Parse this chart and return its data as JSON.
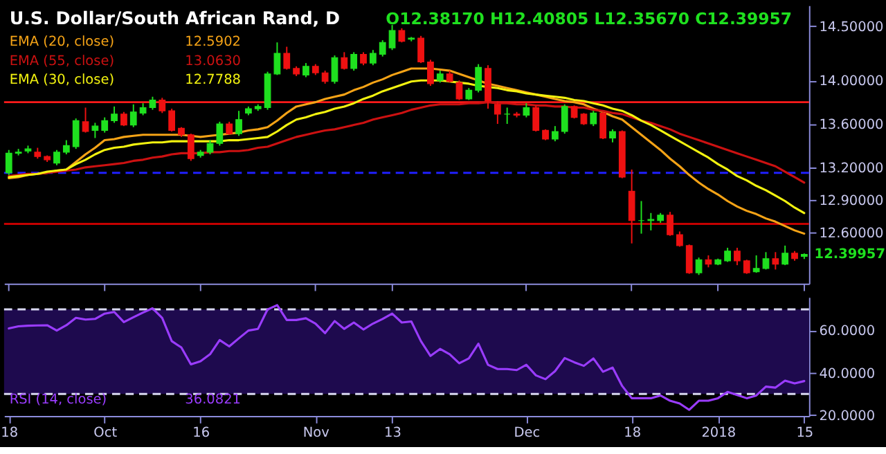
{
  "chart_data": [
    {
      "type": "candlestick",
      "title": "U.S. Dollar/South African Rand, D",
      "subtitle": "O12.38170 H12.40805 L12.35670 C12.39957",
      "categories": [
        "18",
        null,
        null,
        null,
        null,
        null,
        null,
        null,
        null,
        null,
        "Oct",
        null,
        null,
        null,
        null,
        null,
        null,
        null,
        null,
        null,
        "16",
        null,
        null,
        null,
        null,
        null,
        null,
        null,
        null,
        null,
        null,
        null,
        "Nov",
        null,
        null,
        null,
        null,
        null,
        null,
        null,
        "13",
        null,
        null,
        null,
        null,
        null,
        null,
        null,
        null,
        null,
        null,
        null,
        null,
        null,
        "Dec",
        null,
        null,
        null,
        null,
        null,
        null,
        null,
        null,
        null,
        null,
        "18",
        null,
        null,
        null,
        null,
        null,
        null,
        null,
        null,
        "2018",
        null,
        null,
        null,
        null,
        null,
        null,
        null,
        null,
        "15"
      ],
      "ohlc": [
        [
          13.15,
          13.36,
          13.13,
          13.33
        ],
        [
          13.33,
          13.37,
          13.31,
          13.34
        ],
        [
          13.35,
          13.4,
          13.33,
          13.37
        ],
        [
          13.34,
          13.38,
          13.28,
          13.3
        ],
        [
          13.3,
          13.31,
          13.25,
          13.27
        ],
        [
          13.24,
          13.36,
          13.22,
          13.34
        ],
        [
          13.34,
          13.45,
          13.32,
          13.4
        ],
        [
          13.39,
          13.65,
          13.37,
          13.63
        ],
        [
          13.62,
          13.75,
          13.52,
          13.53
        ],
        [
          13.54,
          13.61,
          13.47,
          13.58
        ],
        [
          13.54,
          13.66,
          13.52,
          13.63
        ],
        [
          13.63,
          13.76,
          13.61,
          13.69
        ],
        [
          13.69,
          13.71,
          13.58,
          13.59
        ],
        [
          13.59,
          13.78,
          13.57,
          13.71
        ],
        [
          13.7,
          13.79,
          13.68,
          13.75
        ],
        [
          13.75,
          13.85,
          13.73,
          13.82
        ],
        [
          13.82,
          13.84,
          13.7,
          13.72
        ],
        [
          13.72,
          13.74,
          13.53,
          13.54
        ],
        [
          13.56,
          13.57,
          13.48,
          13.5
        ],
        [
          13.5,
          13.51,
          13.26,
          13.28
        ],
        [
          13.31,
          13.36,
          13.29,
          13.34
        ],
        [
          13.34,
          13.45,
          13.32,
          13.42
        ],
        [
          13.42,
          13.62,
          13.4,
          13.6
        ],
        [
          13.6,
          13.62,
          13.5,
          13.51
        ],
        [
          13.51,
          13.72,
          13.49,
          13.64
        ],
        [
          13.7,
          13.76,
          13.68,
          13.74
        ],
        [
          13.74,
          13.78,
          13.72,
          13.76
        ],
        [
          13.75,
          14.08,
          13.73,
          14.06
        ],
        [
          14.06,
          14.35,
          14.05,
          14.25
        ],
        [
          14.25,
          14.31,
          14.1,
          14.11
        ],
        [
          14.11,
          14.13,
          14.04,
          14.06
        ],
        [
          14.05,
          14.16,
          14.03,
          14.13
        ],
        [
          14.13,
          14.15,
          14.05,
          14.07
        ],
        [
          14.07,
          14.09,
          13.97,
          13.99
        ],
        [
          13.99,
          14.23,
          13.97,
          14.21
        ],
        [
          14.21,
          14.26,
          14.1,
          14.11
        ],
        [
          14.11,
          14.26,
          14.09,
          14.24
        ],
        [
          14.24,
          14.26,
          14.14,
          14.16
        ],
        [
          14.16,
          14.28,
          14.14,
          14.25
        ],
        [
          14.24,
          14.37,
          14.22,
          14.35
        ],
        [
          14.3,
          14.51,
          14.28,
          14.46
        ],
        [
          14.46,
          14.48,
          14.35,
          14.36
        ],
        [
          14.38,
          14.4,
          14.36,
          14.39
        ],
        [
          14.39,
          14.41,
          14.16,
          14.17
        ],
        [
          14.17,
          14.19,
          13.95,
          13.97
        ],
        [
          14.0,
          14.09,
          13.98,
          14.06
        ],
        [
          14.06,
          14.09,
          13.98,
          13.99
        ],
        [
          13.98,
          14.0,
          13.82,
          13.83
        ],
        [
          13.83,
          13.93,
          13.82,
          13.91
        ],
        [
          13.91,
          14.15,
          13.89,
          14.12
        ],
        [
          14.11,
          14.14,
          13.74,
          13.81
        ],
        [
          13.78,
          13.81,
          13.6,
          13.69
        ],
        [
          13.69,
          13.75,
          13.6,
          13.69
        ],
        [
          13.69,
          13.71,
          13.66,
          13.68
        ],
        [
          13.68,
          13.79,
          13.66,
          13.75
        ],
        [
          13.75,
          13.77,
          13.53,
          13.54
        ],
        [
          13.54,
          13.55,
          13.45,
          13.46
        ],
        [
          13.46,
          13.58,
          13.44,
          13.53
        ],
        [
          13.53,
          13.78,
          13.51,
          13.76
        ],
        [
          13.76,
          13.77,
          13.65,
          13.66
        ],
        [
          13.69,
          13.7,
          13.59,
          13.6
        ],
        [
          13.6,
          13.72,
          13.58,
          13.7
        ],
        [
          13.7,
          13.71,
          13.46,
          13.47
        ],
        [
          13.47,
          13.55,
          13.43,
          13.53
        ],
        [
          13.53,
          13.54,
          13.1,
          13.11
        ],
        [
          12.98,
          13.18,
          12.5,
          12.71
        ],
        [
          12.71,
          12.89,
          12.59,
          12.71
        ],
        [
          12.71,
          12.78,
          12.62,
          12.72
        ],
        [
          12.71,
          12.78,
          12.69,
          12.76
        ],
        [
          12.76,
          12.79,
          12.57,
          12.58
        ],
        [
          12.58,
          12.61,
          12.47,
          12.48
        ],
        [
          12.48,
          12.49,
          12.22,
          12.23
        ],
        [
          12.23,
          12.37,
          12.21,
          12.35
        ],
        [
          12.35,
          12.39,
          12.28,
          12.31
        ],
        [
          12.31,
          12.36,
          12.3,
          12.35
        ],
        [
          12.34,
          12.46,
          12.33,
          12.43
        ],
        [
          12.43,
          12.46,
          12.3,
          12.34
        ],
        [
          12.34,
          12.35,
          12.22,
          12.23
        ],
        [
          12.24,
          12.39,
          12.23,
          12.27
        ],
        [
          12.27,
          12.42,
          12.26,
          12.36
        ],
        [
          12.36,
          12.42,
          12.26,
          12.31
        ],
        [
          12.31,
          12.48,
          12.3,
          12.41
        ],
        [
          12.41,
          12.43,
          12.34,
          12.36
        ],
        [
          12.3817,
          12.40805,
          12.3567,
          12.39957
        ]
      ],
      "colors": [
        "#1fe01f",
        "#1fe01f",
        "#1fe01f",
        "#ee1111",
        "#ee1111",
        "#1fe01f",
        "#1fe01f",
        "#1fe01f",
        "#ee1111",
        "#1fe01f",
        "#1fe01f",
        "#1fe01f",
        "#ee1111",
        "#1fe01f",
        "#1fe01f",
        "#1fe01f",
        "#ee1111",
        "#ee1111",
        "#ee1111",
        "#ee1111",
        "#1fe01f",
        "#1fe01f",
        "#1fe01f",
        "#ee1111",
        "#1fe01f",
        "#1fe01f",
        "#1fe01f",
        "#1fe01f",
        "#1fe01f",
        "#ee1111",
        "#ee1111",
        "#1fe01f",
        "#ee1111",
        "#ee1111",
        "#1fe01f",
        "#ee1111",
        "#1fe01f",
        "#ee1111",
        "#1fe01f",
        "#1fe01f",
        "#1fe01f",
        "#ee1111",
        "#1fe01f",
        "#ee1111",
        "#ee1111",
        "#1fe01f",
        "#ee1111",
        "#ee1111",
        "#1fe01f",
        "#1fe01f",
        "#ee1111",
        "#ee1111",
        "#1fe01f",
        "#ee1111",
        "#1fe01f",
        "#ee1111",
        "#ee1111",
        "#1fe01f",
        "#1fe01f",
        "#ee1111",
        "#ee1111",
        "#1fe01f",
        "#ee1111",
        "#1fe01f",
        "#ee1111",
        "#ee1111",
        "#1fe01f",
        "#1fe01f",
        "#1fe01f",
        "#ee1111",
        "#ee1111",
        "#ee1111",
        "#1fe01f",
        "#ee1111",
        "#1fe01f",
        "#1fe01f",
        "#ee1111",
        "#ee1111",
        "#1fe01f",
        "#1fe01f",
        "#ee1111",
        "#1fe01f",
        "#ee1111",
        "#1fe01f"
      ],
      "series": [
        {
          "type": "line",
          "name": "EMA (20, close)",
          "color": "#f5a316",
          "values": [
            13.1,
            13.11,
            13.13,
            13.14,
            13.15,
            13.17,
            13.18,
            13.25,
            13.32,
            13.38,
            13.45,
            13.46,
            13.48,
            13.49,
            13.5,
            13.5,
            13.5,
            13.5,
            13.5,
            13.49,
            13.48,
            13.49,
            13.5,
            13.51,
            13.52,
            13.54,
            13.55,
            13.57,
            13.63,
            13.7,
            13.76,
            13.78,
            13.8,
            13.83,
            13.85,
            13.87,
            13.91,
            13.94,
            13.98,
            14.01,
            14.05,
            14.08,
            14.11,
            14.11,
            14.11,
            14.1,
            14.09,
            14.06,
            14.03,
            14.0,
            13.97,
            13.95,
            13.93,
            13.91,
            13.89,
            13.87,
            13.85,
            13.83,
            13.81,
            13.8,
            13.78,
            13.74,
            13.71,
            13.67,
            13.64,
            13.57,
            13.5,
            13.43,
            13.36,
            13.28,
            13.21,
            13.13,
            13.06,
            13.0,
            12.95,
            12.89,
            12.84,
            12.8,
            12.77,
            12.73,
            12.7,
            12.66,
            12.62,
            12.59
          ]
        },
        {
          "type": "line",
          "name": "EMA (55, close)",
          "color": "#cc1111",
          "values": [
            13.12,
            13.13,
            13.14,
            13.14,
            13.15,
            13.16,
            13.17,
            13.18,
            13.2,
            13.21,
            13.22,
            13.23,
            13.24,
            13.26,
            13.27,
            13.29,
            13.3,
            13.32,
            13.33,
            13.33,
            13.33,
            13.34,
            13.34,
            13.35,
            13.35,
            13.36,
            13.38,
            13.39,
            13.42,
            13.45,
            13.48,
            13.5,
            13.52,
            13.54,
            13.55,
            13.57,
            13.59,
            13.61,
            13.64,
            13.66,
            13.68,
            13.7,
            13.73,
            13.75,
            13.77,
            13.78,
            13.78,
            13.78,
            13.79,
            13.79,
            13.8,
            13.79,
            13.79,
            13.78,
            13.78,
            13.77,
            13.77,
            13.76,
            13.76,
            13.75,
            13.75,
            13.73,
            13.72,
            13.7,
            13.69,
            13.66,
            13.63,
            13.61,
            13.58,
            13.55,
            13.51,
            13.48,
            13.45,
            13.42,
            13.39,
            13.36,
            13.33,
            13.3,
            13.27,
            13.24,
            13.21,
            13.16,
            13.11,
            13.06
          ]
        },
        {
          "type": "line",
          "name": "EMA (30, close)",
          "color": "#f2f20f",
          "values": [
            13.11,
            13.12,
            13.13,
            13.14,
            13.16,
            13.17,
            13.18,
            13.23,
            13.27,
            13.32,
            13.36,
            13.38,
            13.39,
            13.41,
            13.42,
            13.43,
            13.43,
            13.44,
            13.44,
            13.44,
            13.44,
            13.44,
            13.44,
            13.45,
            13.45,
            13.46,
            13.47,
            13.48,
            13.53,
            13.59,
            13.64,
            13.66,
            13.69,
            13.71,
            13.74,
            13.76,
            13.79,
            13.83,
            13.86,
            13.9,
            13.93,
            13.96,
            13.99,
            14.0,
            14.0,
            14.0,
            13.99,
            13.98,
            13.97,
            13.95,
            13.94,
            13.93,
            13.91,
            13.9,
            13.88,
            13.87,
            13.86,
            13.85,
            13.84,
            13.82,
            13.81,
            13.79,
            13.77,
            13.74,
            13.72,
            13.68,
            13.63,
            13.59,
            13.54,
            13.49,
            13.44,
            13.39,
            13.34,
            13.29,
            13.23,
            13.18,
            13.12,
            13.08,
            13.03,
            12.99,
            12.94,
            12.89,
            12.83,
            12.78
          ]
        }
      ],
      "annotations": [
        "12.5902",
        "13.0630",
        "12.7788",
        "12.39957"
      ],
      "ref_lines": [
        {
          "axis": "y",
          "value": 13.8,
          "color": "#ff1a1a"
        },
        {
          "axis": "y",
          "value": 12.68,
          "color": "#c40000"
        },
        {
          "axis": "y",
          "value": 13.15,
          "color": "#2020ff",
          "line_style": "dashed"
        }
      ],
      "ylim": [
        12.13,
        14.69
      ],
      "yticks": [
        {
          "value": 12.6,
          "label": "12.60000"
        },
        {
          "value": 12.9,
          "label": "12.90000"
        },
        {
          "value": 13.2,
          "label": "13.20000"
        },
        {
          "value": 13.6,
          "label": "13.60000"
        },
        {
          "value": 14.0,
          "label": "14.00000"
        },
        {
          "value": 14.5,
          "label": "14.50000"
        }
      ],
      "legend": "top left",
      "tick_labels": "y"
    },
    {
      "type": "line",
      "series": [
        {
          "name": "RSI (14, close)",
          "color": "#9a3cff",
          "values": [
            61,
            62,
            62.3,
            62.4,
            62.5,
            60,
            62.5,
            66,
            65.2,
            65.5,
            68,
            68.8,
            64,
            66.3,
            68.5,
            70.5,
            66,
            55,
            52,
            44,
            45.5,
            48.8,
            55.5,
            52.5,
            56.3,
            60,
            60.8,
            70,
            72,
            65,
            65,
            65.8,
            63.3,
            58.8,
            64.5,
            60.8,
            63.8,
            60.5,
            63.3,
            65.5,
            68,
            63.8,
            64.3,
            55,
            48,
            51.3,
            48.8,
            44.5,
            46.8,
            53.8,
            43.8,
            41.8,
            41.8,
            41.3,
            43.8,
            38.8,
            37,
            40.8,
            47,
            45,
            43.3,
            46.8,
            40.5,
            42.5,
            33.8,
            28,
            28,
            28,
            29.3,
            26.8,
            25.5,
            22.5,
            26.8,
            26.8,
            28,
            31,
            29.5,
            28,
            29.3,
            33.5,
            33,
            36.3,
            35,
            36.1
          ]
        }
      ],
      "annotations": [
        "36.0821"
      ],
      "ref_lines": [
        {
          "axis": "y",
          "value": 70,
          "color": "#d8d8f0",
          "line_style": "dashed"
        },
        {
          "axis": "y",
          "value": 30,
          "color": "#d8d8f0",
          "line_style": "dashed"
        }
      ],
      "bands": [
        {
          "axis": "y",
          "from": 30,
          "to": 70,
          "color": "#1e0a4e"
        }
      ],
      "ylim": [
        19.6,
        75.8
      ],
      "yticks": [
        {
          "value": 20,
          "label": "20.0000"
        },
        {
          "value": 40,
          "label": "40.0000"
        },
        {
          "value": 60,
          "label": "60.0000"
        }
      ],
      "legend": "bottom left"
    }
  ]
}
